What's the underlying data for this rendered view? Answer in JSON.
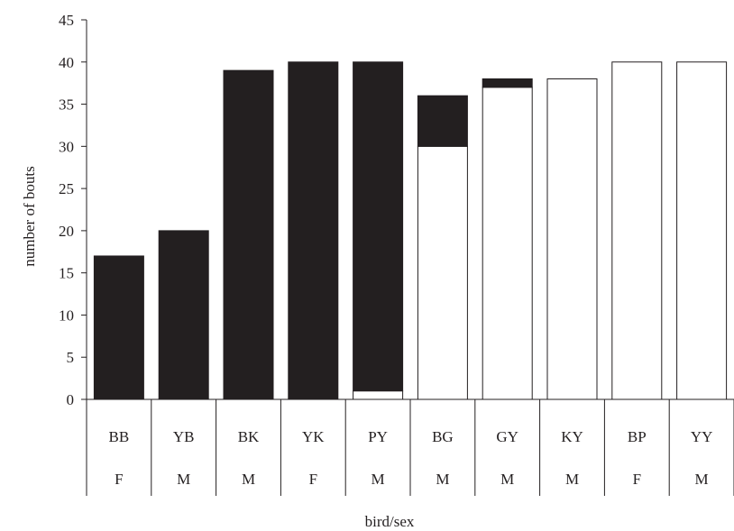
{
  "chart_data": {
    "type": "bar",
    "stacked": true,
    "categories": [
      "BB",
      "YB",
      "BK",
      "YK",
      "PY",
      "BG",
      "GY",
      "KY",
      "BP",
      "YY"
    ],
    "sex": [
      "F",
      "M",
      "M",
      "F",
      "M",
      "M",
      "M",
      "M",
      "F",
      "M"
    ],
    "series": [
      {
        "color": "#ffffff",
        "values": [
          0,
          0,
          0,
          0,
          1,
          30,
          37,
          38,
          40,
          40
        ]
      },
      {
        "color": "#231f20",
        "values": [
          17,
          20,
          39,
          40,
          39,
          6,
          1,
          0,
          0,
          0
        ]
      }
    ],
    "xlabel": "bird/sex",
    "ylabel": "number of bouts",
    "ylim": [
      0,
      45
    ],
    "yticks": [
      0,
      5,
      10,
      15,
      20,
      25,
      30,
      35,
      40,
      45
    ],
    "grid": false,
    "legend": "none"
  }
}
